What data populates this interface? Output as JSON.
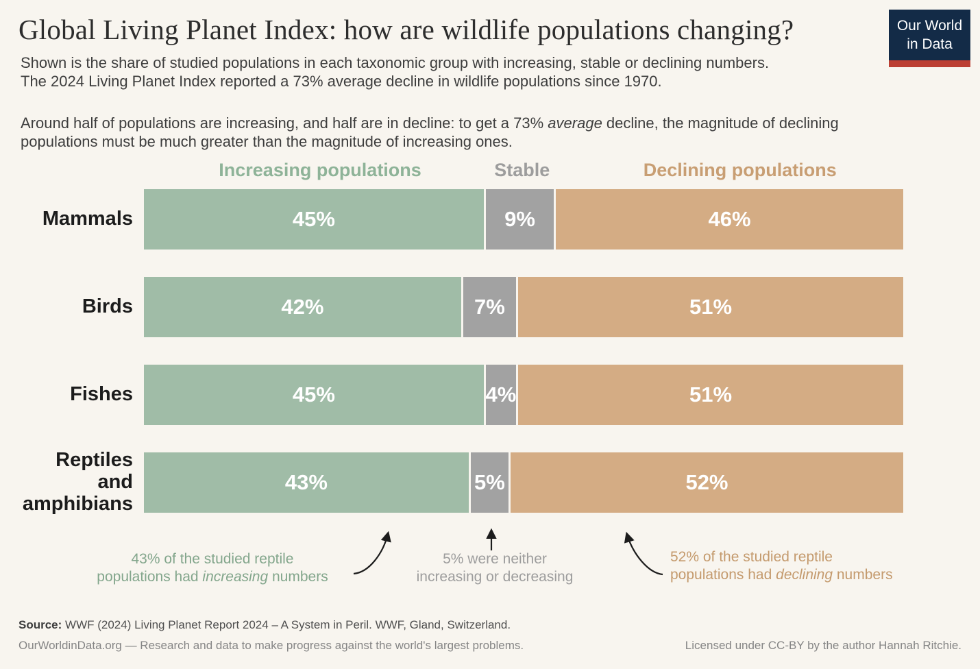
{
  "header": {
    "title": "Global Living Planet Index: how are wildlife populations changing?",
    "subtitle_line1": "Shown is the share of studied populations in each taxonomic group with increasing, stable or declining numbers.",
    "subtitle_line2": "The 2024 Living Planet Index reported a 73% average decline in wildlife populations since 1970.",
    "note": {
      "prefix": "Around half of populations are increasing, and half are in decline: to get a 73% ",
      "italic": "average",
      "suffix": " decline, the magnitude of declining populations must be much greater than the magnitude of increasing ones."
    },
    "logo": {
      "line1": "Our World",
      "line2": "in Data",
      "bg_color": "#132b47",
      "stripe_color": "#bc3f33"
    }
  },
  "chart_data": {
    "type": "bar",
    "orientation": "horizontal",
    "stacked": true,
    "value_suffix": "%",
    "xlim": [
      0,
      100
    ],
    "grid": false,
    "legend_position": "top-column-headers",
    "categories": [
      "Mammals",
      "Birds",
      "Fishes",
      "Reptiles and amphibians"
    ],
    "series": [
      {
        "name": "Increasing populations",
        "color": "#a0bca7",
        "label_color": "#8eb398",
        "values": [
          45,
          42,
          45,
          43
        ]
      },
      {
        "name": "Stable",
        "color": "#a2a2a2",
        "label_color": "#9d9d9d",
        "values": [
          9,
          7,
          4,
          5
        ]
      },
      {
        "name": "Declining populations",
        "color": "#d4ac84",
        "label_color": "#c89e73",
        "values": [
          46,
          51,
          51,
          52
        ]
      }
    ]
  },
  "annotations": {
    "increasing": {
      "line1": "43% of the studied reptile",
      "line2_prefix": "populations had ",
      "line2_italic": "increasing",
      "line2_suffix": " numbers",
      "color": "#83a68c"
    },
    "stable": {
      "line1": "5% were neither",
      "line2": "increasing or decreasing",
      "color": "#9d9d9d"
    },
    "declining": {
      "line1": "52% of the studied reptile",
      "line2_prefix": "populations had ",
      "line2_italic": "declining",
      "line2_suffix": " numbers",
      "color": "#c49a6d"
    }
  },
  "footer": {
    "source_label": "Source:",
    "source_text": " WWF (2024) Living Planet Report 2024 – A System in Peril. WWF, Gland, Switzerland.",
    "site_line": "OurWorldinData.org — Research and data to make progress against the world's largest problems.",
    "license_line": "Licensed under CC-BY by the author Hannah Ritchie."
  }
}
